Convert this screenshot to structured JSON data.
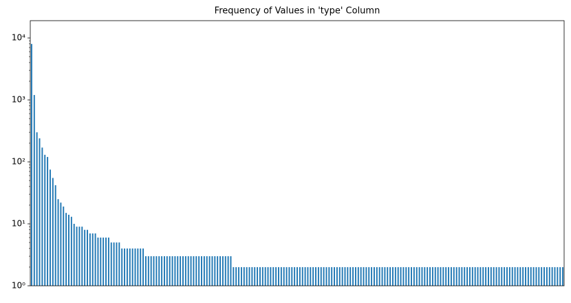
{
  "chart_data": {
    "type": "bar",
    "title": "Frequency of Values in 'type' Column",
    "values": [
      8000,
      1200,
      300,
      240,
      170,
      130,
      120,
      75,
      55,
      42,
      25,
      22,
      19,
      15,
      14,
      13,
      10,
      9,
      9,
      9,
      8,
      8,
      7,
      7,
      7,
      6,
      6,
      6,
      6,
      6,
      5,
      5,
      5,
      5,
      4,
      4,
      4,
      4,
      4,
      4,
      4,
      4,
      4,
      3,
      3,
      3,
      3,
      3,
      3,
      3,
      3,
      3,
      3,
      3,
      3,
      3,
      3,
      3,
      3,
      3,
      3,
      3,
      3,
      3,
      3,
      3,
      3,
      3,
      3,
      3,
      3,
      3,
      3,
      3,
      3,
      3,
      2,
      2,
      2,
      2,
      2,
      2,
      2,
      2,
      2,
      2,
      2,
      2,
      2,
      2,
      2,
      2,
      2,
      2,
      2,
      2,
      2,
      2,
      2,
      2,
      2,
      2,
      2,
      2,
      2,
      2,
      2,
      2,
      2,
      2,
      2,
      2,
      2,
      2,
      2,
      2,
      2,
      2,
      2,
      2,
      2,
      2,
      2,
      2,
      2,
      2,
      2,
      2,
      2,
      2,
      2,
      2,
      2,
      2,
      2,
      2,
      2,
      2,
      2,
      2,
      2,
      2,
      2,
      2,
      2,
      2,
      2,
      2,
      2,
      2,
      2,
      2,
      2,
      2,
      2,
      2,
      2,
      2,
      2,
      2,
      2,
      2,
      2,
      2,
      2,
      2,
      2,
      2,
      2,
      2,
      2,
      2,
      2,
      2,
      2,
      2,
      2,
      2,
      2,
      2,
      2,
      2,
      2,
      2,
      2,
      2,
      2,
      2,
      2,
      2,
      2,
      2,
      2,
      2,
      2,
      2,
      2,
      2,
      2,
      2,
      2
    ],
    "color": "#1f77b4",
    "log_scale": true,
    "ylim": [
      1,
      19000
    ],
    "yticks": [
      {
        "value": 1,
        "label": "10⁰"
      },
      {
        "value": 10,
        "label": "10¹"
      },
      {
        "value": 100,
        "label": "10²"
      },
      {
        "value": 1000,
        "label": "10³"
      },
      {
        "value": 10000,
        "label": "10⁴"
      }
    ]
  }
}
